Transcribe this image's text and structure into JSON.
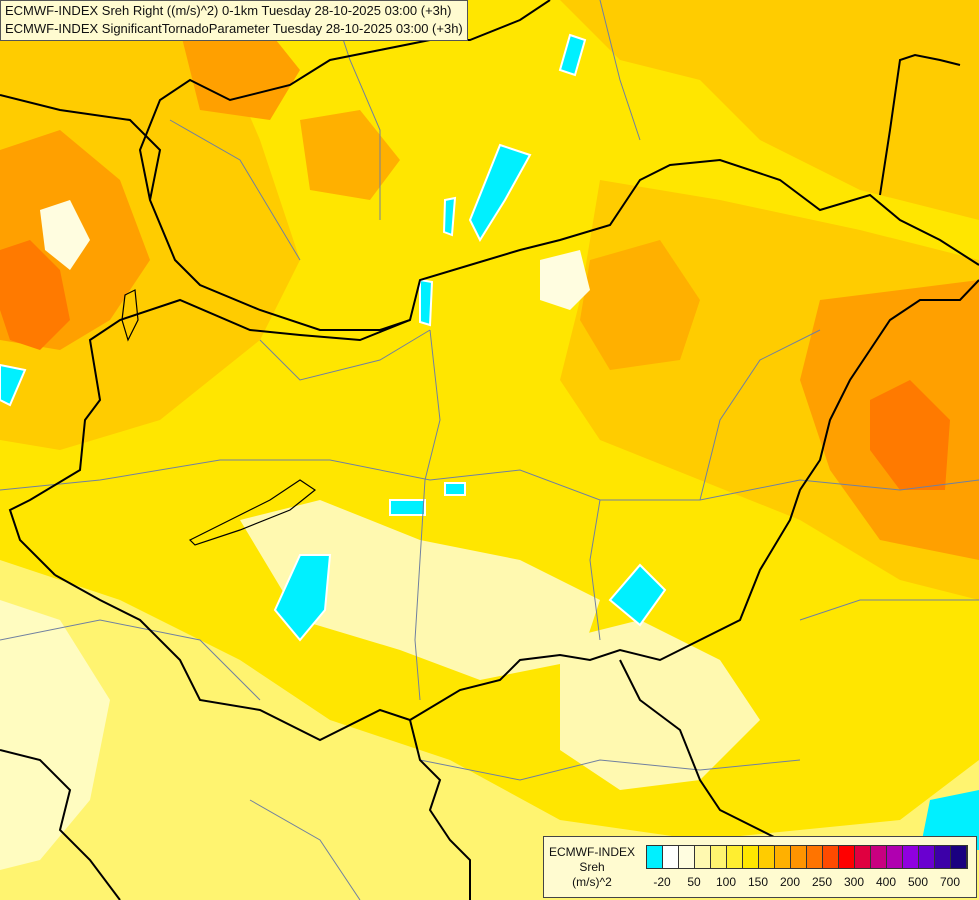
{
  "title": {
    "line1": "ECMWF-INDEX Sreh Right ((m/s)^2) 0-1km Tuesday 28-10-2025 03:00 (+3h)",
    "line2": "ECMWF-INDEX SignificantTornadoParameter Tuesday 28-10-2025 03:00 (+3h)"
  },
  "legend": {
    "line1": "ECMWF-INDEX",
    "line2": "Sreh",
    "line3": "(m/s)^2",
    "colors": [
      "#00f0ff",
      "#ffffff",
      "#fffde0",
      "#fff9b0",
      "#fff470",
      "#ffee30",
      "#ffe600",
      "#ffcc00",
      "#ffb000",
      "#ff9400",
      "#ff7400",
      "#ff4a00",
      "#ff0000",
      "#e00040",
      "#c80080",
      "#b000b0",
      "#9000e0",
      "#6a00d0",
      "#3c00a8",
      "#1a0080"
    ],
    "ticks": [
      "-20",
      "50",
      "100",
      "150",
      "200",
      "250",
      "300",
      "400",
      "500",
      "700"
    ]
  },
  "colors": {
    "cyan": "#00f0ff",
    "light_yellow": "#fffcc0",
    "yellow": "#ffe600",
    "gold": "#ffcc00",
    "orange": "#ffa000",
    "dark_orange": "#ff7a00",
    "border": "#000000",
    "region_line": "#7080a0"
  }
}
